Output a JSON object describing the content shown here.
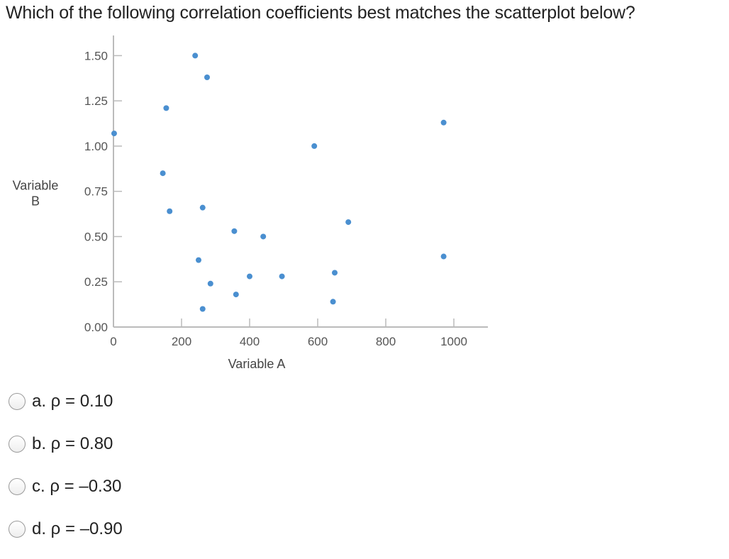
{
  "question": {
    "text": "Which of the following correlation coefficients best matches the scatterplot below?"
  },
  "options": [
    {
      "label": "a. ρ = 0.10"
    },
    {
      "label": "b. ρ = 0.80"
    },
    {
      "label": "c. ρ = –0.30"
    },
    {
      "label": "d. ρ = –0.90"
    }
  ],
  "colors": {
    "point": "#4a8fd0",
    "axis": "#bbbbbb",
    "text": "#222222"
  },
  "chart_data": {
    "type": "scatter",
    "title": "",
    "xlabel": "Variable A",
    "ylabel": [
      "Variable",
      "B"
    ],
    "xlim": [
      0,
      1100
    ],
    "ylim": [
      0,
      1.58
    ],
    "xticks": [
      0,
      200,
      400,
      600,
      800,
      1000
    ],
    "xtick_labels": [
      "0",
      "200",
      "400",
      "600",
      "800",
      "1000"
    ],
    "yticks": [
      0,
      0.25,
      0.5,
      0.75,
      1.0,
      1.25,
      1.5
    ],
    "ytick_labels": [
      "0.00",
      "0.25",
      "0.50",
      "0.75",
      "1.00",
      "1.25",
      "1.50"
    ],
    "grid": false,
    "series": [
      {
        "x": [
          2,
          145,
          155,
          165,
          240,
          250,
          262,
          262,
          275,
          285,
          355,
          360,
          400,
          440,
          495,
          590,
          645,
          650,
          690,
          970,
          970
        ],
        "y": [
          1.07,
          0.85,
          1.21,
          0.64,
          1.5,
          0.37,
          0.66,
          0.1,
          1.38,
          0.24,
          0.53,
          0.18,
          0.28,
          0.5,
          0.28,
          1.0,
          0.14,
          0.3,
          0.58,
          1.13,
          0.39
        ]
      }
    ]
  }
}
